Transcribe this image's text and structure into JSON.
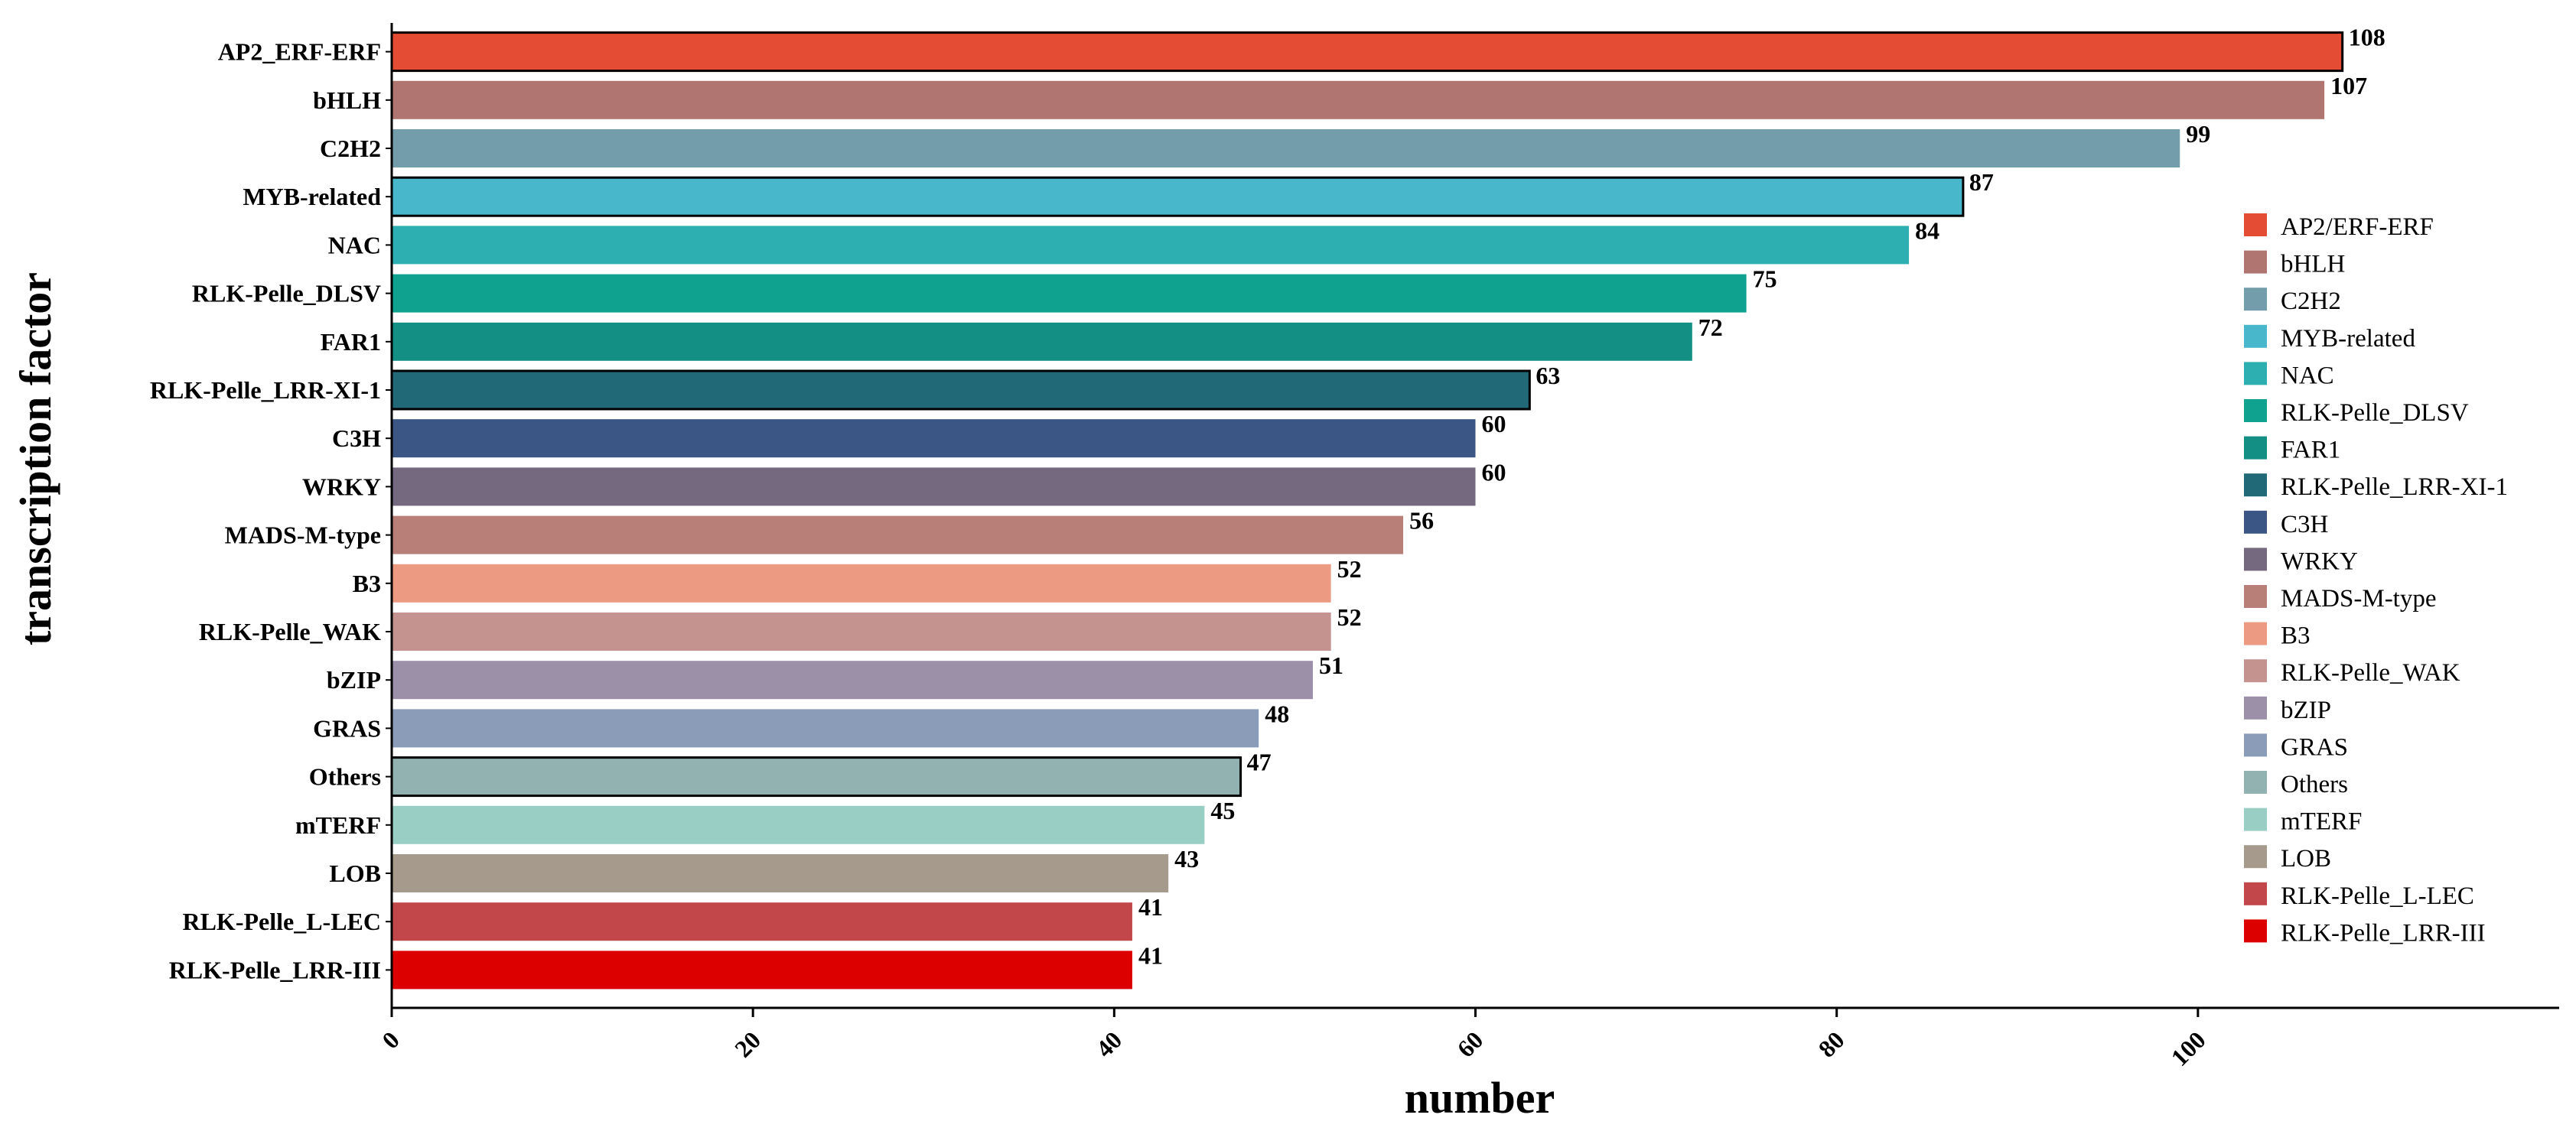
{
  "chart_data": {
    "type": "bar",
    "orientation": "horizontal",
    "xlabel": "number",
    "ylabel": "transcription factor",
    "xlim": [
      0,
      120
    ],
    "xticks": [
      0,
      20,
      40,
      60,
      80,
      100
    ],
    "grid": false,
    "legend_position": "right",
    "categories": [
      "AP2_ERF-ERF",
      "bHLH",
      "C2H2",
      "MYB-related",
      "NAC",
      "RLK-Pelle_DLSV",
      "FAR1",
      "RLK-Pelle_LRR-XI-1",
      "C3H",
      "WRKY",
      "MADS-M-type",
      "B3",
      "RLK-Pelle_WAK",
      "bZIP",
      "GRAS",
      "Others",
      "mTERF",
      "LOB",
      "RLK-Pelle_L-LEC",
      "RLK-Pelle_LRR-III"
    ],
    "values": [
      108,
      107,
      99,
      87,
      84,
      75,
      72,
      63,
      60,
      60,
      56,
      52,
      52,
      51,
      48,
      47,
      45,
      43,
      41,
      41
    ],
    "legend": [
      "AP2/ERF-ERF",
      "bHLH",
      "C2H2",
      "MYB-related",
      "NAC",
      "RLK-Pelle_DLSV",
      "FAR1",
      "RLK-Pelle_LRR-XI-1",
      "C3H",
      "WRKY",
      "MADS-M-type",
      "B3",
      "RLK-Pelle_WAK",
      "bZIP",
      "GRAS",
      "Others",
      "mTERF",
      "LOB",
      "RLK-Pelle_L-LEC",
      "RLK-Pelle_LRR-III"
    ],
    "colors": [
      "#e44c34",
      "#b07570",
      "#739daa",
      "#48b6cb",
      "#2daeb0",
      "#0fa28e",
      "#148f84",
      "#226978",
      "#3b5584",
      "#75697f",
      "#b87e78",
      "#ec9a82",
      "#c49390",
      "#9c90a8",
      "#8a9cb7",
      "#91b2b1",
      "#98cec3",
      "#a69a8d",
      "#c1474a",
      "#dd0000"
    ],
    "outlined": [
      true,
      false,
      false,
      true,
      false,
      false,
      false,
      true,
      false,
      false,
      false,
      false,
      false,
      false,
      false,
      true,
      false,
      false,
      false,
      false
    ]
  }
}
